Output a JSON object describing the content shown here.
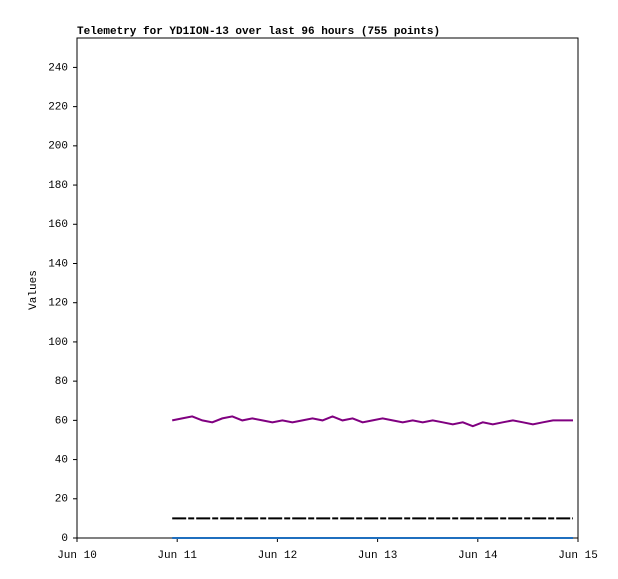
{
  "chart_data": {
    "type": "line",
    "title": "Telemetry for YD1ION-13 over last 96 hours (755 points)",
    "ylabel": "Values",
    "x": [
      0.95,
      1.05,
      1.15,
      1.25,
      1.35,
      1.45,
      1.55,
      1.65,
      1.75,
      1.85,
      1.95,
      2.05,
      2.15,
      2.25,
      2.35,
      2.45,
      2.55,
      2.65,
      2.75,
      2.85,
      2.95,
      3.05,
      3.15,
      3.25,
      3.35,
      3.45,
      3.55,
      3.65,
      3.75,
      3.85,
      3.95,
      4.05,
      4.15,
      4.25,
      4.35,
      4.45,
      4.55,
      4.65,
      4.75,
      4.85,
      4.95
    ],
    "series": [
      {
        "color": "#800080",
        "values": [
          60,
          61,
          62,
          60,
          59,
          61,
          62,
          60,
          61,
          60,
          59,
          60,
          59,
          60,
          61,
          60,
          62,
          60,
          61,
          59,
          60,
          61,
          60,
          59,
          60,
          59,
          60,
          59,
          58,
          59,
          57,
          59,
          58,
          59,
          60,
          59,
          58,
          59,
          60,
          60,
          60
        ]
      },
      {
        "color": "#000000",
        "values": [
          10,
          10,
          10,
          10,
          10,
          10,
          10,
          10,
          10,
          10,
          10,
          10,
          10,
          10,
          10,
          10,
          10,
          10,
          10,
          10,
          10,
          10,
          10,
          10,
          10,
          10,
          10,
          10,
          10,
          10,
          10,
          10,
          10,
          10,
          10,
          10,
          10,
          10,
          10,
          10,
          10
        ]
      },
      {
        "color": "#1f6fbf",
        "values": [
          0,
          0,
          0,
          0,
          0,
          0,
          0,
          0,
          0,
          0,
          0,
          0,
          0,
          0,
          0,
          0,
          0,
          0,
          0,
          0,
          0,
          0,
          0,
          0,
          0,
          0,
          0,
          0,
          0,
          0,
          0,
          0,
          0,
          0,
          0,
          0,
          0,
          0,
          0,
          0,
          0
        ]
      }
    ],
    "xlim": [
      0,
      5
    ],
    "xticks": [
      {
        "value": 0,
        "label": "Jun 10"
      },
      {
        "value": 1,
        "label": "Jun 11"
      },
      {
        "value": 2,
        "label": "Jun 12"
      },
      {
        "value": 3,
        "label": "Jun 13"
      },
      {
        "value": 4,
        "label": "Jun 14"
      },
      {
        "value": 5,
        "label": "Jun 15"
      }
    ],
    "ylim": [
      0,
      255
    ],
    "yticks": [
      0,
      20,
      40,
      60,
      80,
      100,
      120,
      140,
      160,
      180,
      200,
      220,
      240
    ]
  }
}
